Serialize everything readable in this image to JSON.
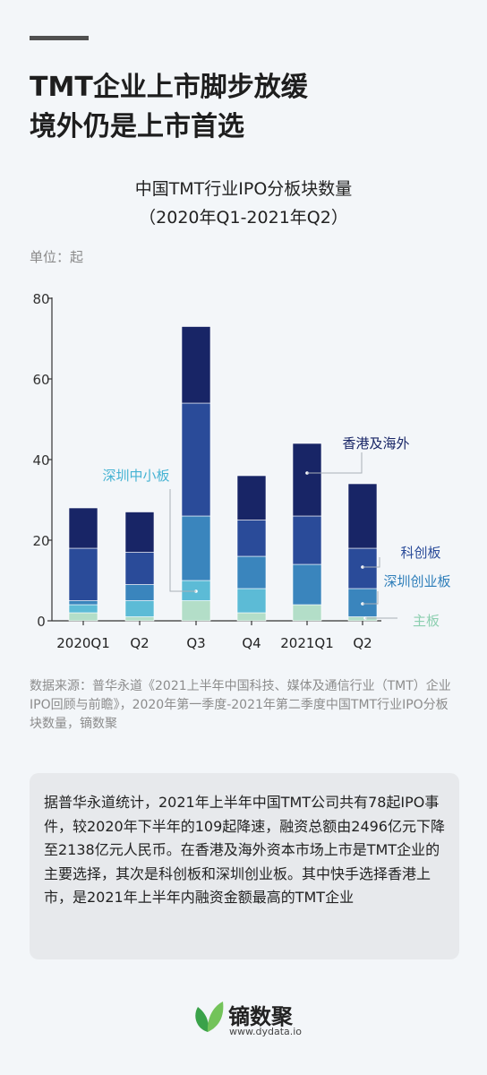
{
  "headline": {
    "line1": "TMT企业上市脚步放缓",
    "line2": "境外仍是上市首选"
  },
  "chart_title": {
    "line1": "中国TMT行业IPO分板块数量",
    "line2": "（2020年Q1-2021年Q2）"
  },
  "unit_label": "单位：起",
  "chart_data": {
    "type": "bar",
    "stacked": true,
    "categories": [
      "2020Q1",
      "Q2",
      "Q3",
      "Q4",
      "2021Q1",
      "Q2"
    ],
    "ylim": [
      0,
      80
    ],
    "yticks": [
      0,
      20,
      40,
      60,
      80
    ],
    "grid": false,
    "series": [
      {
        "name": "主板",
        "color": "#b3dec8",
        "values": [
          2,
          1,
          5,
          2,
          4,
          1
        ]
      },
      {
        "name": "深圳中小板",
        "color": "#5cbbd6",
        "values": [
          2,
          4,
          5,
          6,
          0,
          0
        ]
      },
      {
        "name": "深圳创业板",
        "color": "#3a85bd",
        "values": [
          1,
          4,
          16,
          8,
          10,
          7
        ]
      },
      {
        "name": "科创板",
        "color": "#2a4b99",
        "values": [
          13,
          8,
          28,
          9,
          12,
          10
        ]
      },
      {
        "name": "香港及海外",
        "color": "#182566",
        "values": [
          10,
          10,
          19,
          11,
          18,
          16
        ]
      }
    ]
  },
  "source_text": "数据来源：普华永道《2021上半年中国科技、媒体及通信行业（TMT）企业IPO回顾与前瞻》，2020年第一季度-2021年第二季度中国TMT行业IPO分板块数量，镝数聚",
  "summary_text": "据普华永道统计，2021年上半年中国TMT公司共有78起IPO事件，较2020年下半年的109起降速，融资总额由2496亿元下降至2138亿元人民币。在香港及海外资本市场上市是TMT企业的主要选择，其次是科创板和深圳创业板。其中快手选择香港上市，是2021年上半年内融资金额最高的TMT企业",
  "brand": {
    "name": "镝数聚",
    "url": "www.dydata.io"
  }
}
